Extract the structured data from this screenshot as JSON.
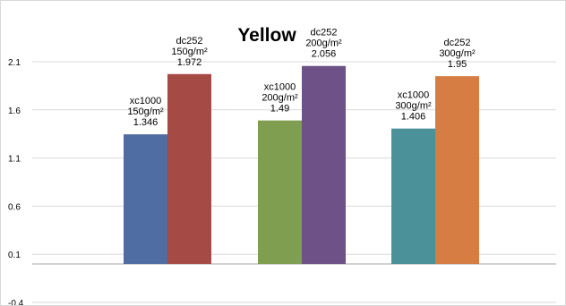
{
  "chart_data": {
    "type": "bar",
    "title": "Yellow",
    "xlabel": "",
    "ylabel": "",
    "ylim": [
      -0.4,
      2.1
    ],
    "yticks": [
      "2.1",
      "1.6",
      "1.1",
      "0.6",
      "0.1",
      "-0.4"
    ],
    "ytick_values": [
      2.1,
      1.6,
      1.1,
      0.6,
      0.1,
      -0.4
    ],
    "grid": true,
    "legend": "none",
    "groups": [
      {
        "bars": [
          {
            "line1": "xc1000",
            "line2": "150g/m²",
            "value_label": "1.346",
            "value": 1.346,
            "color": "#4f6ca3"
          },
          {
            "line1": "dc252",
            "line2": "150g/m²",
            "value_label": "1.972",
            "value": 1.972,
            "color": "#a64a46"
          }
        ]
      },
      {
        "bars": [
          {
            "line1": "xc1000",
            "line2": "200g/m²",
            "value_label": "1.49",
            "value": 1.49,
            "color": "#7f9e4f"
          },
          {
            "line1": "dc252",
            "line2": "200g/m²",
            "value_label": "2.056",
            "value": 2.056,
            "color": "#6e5186"
          }
        ]
      },
      {
        "bars": [
          {
            "line1": "xc1000",
            "line2": "300g/m²",
            "value_label": "1.406",
            "value": 1.406,
            "color": "#4a9199"
          },
          {
            "line1": "dc252",
            "line2": "300g/m²",
            "value_label": "1.95",
            "value": 1.95,
            "color": "#d57d42"
          }
        ]
      }
    ]
  }
}
